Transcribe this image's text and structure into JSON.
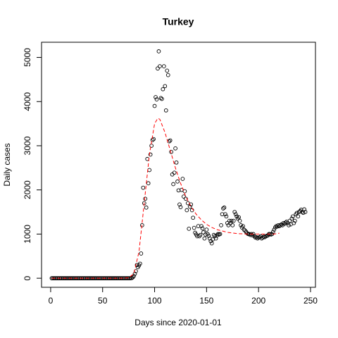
{
  "chart_data": {
    "type": "scatter",
    "title": "Turkey",
    "x_label": "Days since 2020-01-01",
    "y_label": "Daily cases",
    "xlim": [
      -8.76,
      254.76
    ],
    "ylim": [
      -205.5,
      5343.5
    ],
    "xticks": [
      0,
      50,
      100,
      150,
      200,
      250
    ],
    "yticks": [
      0,
      1000,
      2000,
      3000,
      4000,
      5000
    ],
    "series": [
      {
        "type": "scatter",
        "color": "#000000",
        "x": [
          1,
          2,
          3,
          4,
          5,
          6,
          7,
          8,
          9,
          10,
          11,
          12,
          13,
          14,
          15,
          16,
          17,
          18,
          19,
          20,
          21,
          22,
          23,
          24,
          25,
          26,
          27,
          28,
          29,
          30,
          31,
          32,
          33,
          34,
          35,
          36,
          37,
          38,
          39,
          40,
          41,
          42,
          43,
          44,
          45,
          46,
          47,
          48,
          49,
          50,
          51,
          52,
          53,
          54,
          55,
          56,
          57,
          58,
          59,
          60,
          61,
          62,
          63,
          64,
          65,
          66,
          67,
          68,
          69,
          70,
          71,
          72,
          73,
          74,
          75,
          76,
          77,
          78,
          79,
          80,
          81,
          82,
          83,
          84,
          85,
          86,
          87,
          88,
          89,
          90,
          91,
          92,
          93,
          94,
          95,
          96,
          97,
          98,
          99,
          100,
          101,
          102,
          103,
          104,
          105,
          106,
          107,
          108,
          109,
          110,
          111,
          112,
          113,
          114,
          115,
          116,
          117,
          118,
          119,
          120,
          121,
          122,
          123,
          124,
          125,
          126,
          127,
          128,
          129,
          130,
          131,
          132,
          133,
          134,
          135,
          136,
          137,
          138,
          139,
          140,
          141,
          142,
          143,
          144,
          145,
          146,
          147,
          148,
          149,
          150,
          151,
          152,
          153,
          154,
          155,
          156,
          157,
          158,
          159,
          160,
          161,
          162,
          163,
          164,
          165,
          166,
          167,
          168,
          169,
          170,
          171,
          172,
          173,
          174,
          175,
          176,
          177,
          178,
          179,
          180,
          181,
          182,
          183,
          184,
          185,
          186,
          187,
          188,
          189,
          190,
          191,
          192,
          193,
          194,
          195,
          196,
          197,
          198,
          199,
          200,
          201,
          202,
          203,
          204,
          205,
          206,
          207,
          208,
          209,
          210,
          211,
          212,
          213,
          214,
          215,
          216,
          217,
          218,
          219,
          220,
          221,
          222,
          223,
          224,
          225,
          226,
          227,
          228,
          229,
          230,
          231,
          232,
          233,
          234,
          235,
          236,
          237,
          238,
          239,
          240,
          241,
          242,
          243,
          244,
          245
        ],
        "values": [
          0,
          0,
          0,
          0,
          0,
          0,
          0,
          0,
          0,
          0,
          0,
          0,
          0,
          0,
          0,
          0,
          0,
          0,
          0,
          0,
          0,
          0,
          0,
          0,
          0,
          0,
          0,
          0,
          0,
          0,
          0,
          0,
          0,
          0,
          0,
          0,
          0,
          0,
          0,
          0,
          0,
          0,
          0,
          0,
          0,
          0,
          0,
          0,
          0,
          0,
          0,
          0,
          0,
          0,
          0,
          0,
          0,
          0,
          0,
          0,
          0,
          0,
          0,
          0,
          0,
          0,
          0,
          0,
          0,
          0,
          0,
          0,
          0,
          0,
          0,
          0,
          1,
          5,
          20,
          50,
          100,
          160,
          300,
          250,
          290,
          330,
          560,
          1200,
          2050,
          1700,
          1800,
          1600,
          2700,
          2150,
          2450,
          2800,
          3000,
          3130,
          3150,
          3900,
          4100,
          4050,
          4750,
          5138,
          4800,
          4080,
          4060,
          4280,
          4800,
          4350,
          3800,
          4700,
          4600,
          3100,
          3120,
          2860,
          2350,
          2130,
          2390,
          2940,
          2620,
          2190,
          1990,
          1670,
          1610,
          2000,
          2250,
          1850,
          1970,
          1800,
          1540,
          1700,
          1120,
          1620,
          1670,
          1540,
          1370,
          1140,
          1030,
          990,
          950,
          1180,
          950,
          980,
          1180,
          1130,
          1040,
          900,
          990,
          1100,
          1000,
          960,
          900,
          840,
          790,
          880,
          980,
          950,
          900,
          970,
          1000,
          990,
          1000,
          1200,
          1450,
          1580,
          1600,
          1450,
          1400,
          1250,
          1200,
          1300,
          1250,
          1300,
          1200,
          1300,
          1500,
          1450,
          1400,
          1350,
          1380,
          1300,
          1200,
          1150,
          1180,
          1100,
          1080,
          1050,
          1020,
          1000,
          1000,
          980,
          1000,
          970,
          1000,
          950,
          920,
          930,
          900,
          920,
          930,
          950,
          900,
          920,
          940,
          930,
          950,
          960,
          970,
          1000,
          1000,
          990,
          1000,
          1050,
          1100,
          1150,
          1180,
          1170,
          1200,
          1180,
          1200,
          1220,
          1200,
          1250,
          1230,
          1260,
          1280,
          1250,
          1200,
          1300,
          1220,
          1350,
          1400,
          1250,
          1300,
          1450,
          1480,
          1400,
          1500,
          1520,
          1550,
          1500,
          1480,
          1560,
          1500
        ]
      },
      {
        "type": "line",
        "color": "#ff0000",
        "dashed": true,
        "x": [
          1,
          70,
          75,
          80,
          85,
          90,
          95,
          100,
          103,
          105,
          110,
          115,
          120,
          125,
          130,
          135,
          140,
          145,
          150,
          155,
          160,
          170,
          180,
          190,
          200,
          210,
          215,
          220
        ],
        "values": [
          0,
          0,
          10,
          100,
          600,
          1700,
          2800,
          3500,
          3620,
          3600,
          3300,
          2900,
          2500,
          2150,
          1850,
          1620,
          1450,
          1320,
          1220,
          1150,
          1100,
          1040,
          1010,
          1000,
          1000,
          1000,
          1000,
          1020
        ]
      }
    ]
  }
}
